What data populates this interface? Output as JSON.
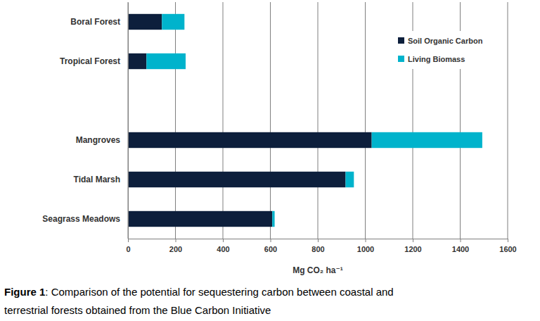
{
  "chart_data": {
    "type": "bar",
    "orientation": "horizontal",
    "stacked": true,
    "grid": true,
    "legend": "top-right",
    "categories": [
      "Boral Forest",
      "Tropical Forest",
      null,
      "Mangroves",
      "Tidal Marsh",
      "Seagrass Meadows"
    ],
    "series": [
      {
        "name": "Soil Organic Carbon",
        "color": "#0d1f3c",
        "values": [
          143,
          78,
          null,
          1027,
          917,
          608
        ]
      },
      {
        "name": "Living Biomass",
        "color": "#00b3cc",
        "values": [
          95,
          165,
          null,
          466,
          35,
          10
        ]
      }
    ],
    "xlabel": "Mg CO₂ ha⁻¹",
    "xlim": [
      0,
      1600
    ],
    "xticks": [
      0,
      200,
      400,
      600,
      800,
      1000,
      1200,
      1400,
      1600
    ],
    "caption": {
      "label": "Figure 1",
      "lines": [
        ": Comparison of the potential for sequestering carbon between coastal and",
        "terrestrial forests obtained from the Blue Carbon Initiative"
      ]
    }
  }
}
